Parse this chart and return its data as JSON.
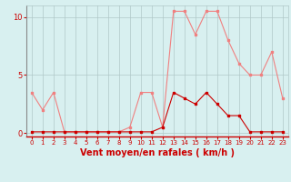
{
  "x": [
    0,
    1,
    2,
    3,
    4,
    5,
    6,
    7,
    8,
    9,
    10,
    11,
    12,
    13,
    14,
    15,
    16,
    17,
    18,
    19,
    20,
    21,
    22,
    23
  ],
  "rafales": [
    3.5,
    2.0,
    3.5,
    0.1,
    0.1,
    0.1,
    0.1,
    0.1,
    0.1,
    0.5,
    3.5,
    3.5,
    0.5,
    10.5,
    10.5,
    8.5,
    10.5,
    10.5,
    8.0,
    6.0,
    5.0,
    5.0,
    7.0,
    3.0
  ],
  "moyen": [
    0.1,
    0.1,
    0.1,
    0.1,
    0.1,
    0.1,
    0.1,
    0.1,
    0.1,
    0.1,
    0.1,
    0.1,
    0.5,
    3.5,
    3.0,
    2.5,
    3.5,
    2.5,
    1.5,
    1.5,
    0.1,
    0.1,
    0.1,
    0.1
  ],
  "rafales_color": "#f08080",
  "moyen_color": "#cc0000",
  "bg_color": "#d8f0f0",
  "grid_color": "#b0c8c8",
  "xlabel": "Vent moyen/en rafales ( km/h )",
  "ylim": [
    -0.3,
    11.0
  ],
  "yticks": [
    0,
    5,
    10
  ],
  "xticks": [
    0,
    1,
    2,
    3,
    4,
    5,
    6,
    7,
    8,
    9,
    10,
    11,
    12,
    13,
    14,
    15,
    16,
    17,
    18,
    19,
    20,
    21,
    22,
    23
  ],
  "marker": "s",
  "markersize": 2.0,
  "linewidth": 0.8,
  "title_fontsize": 6,
  "xlabel_fontsize": 7,
  "tick_fontsize": 5,
  "ytick_fontsize": 6
}
